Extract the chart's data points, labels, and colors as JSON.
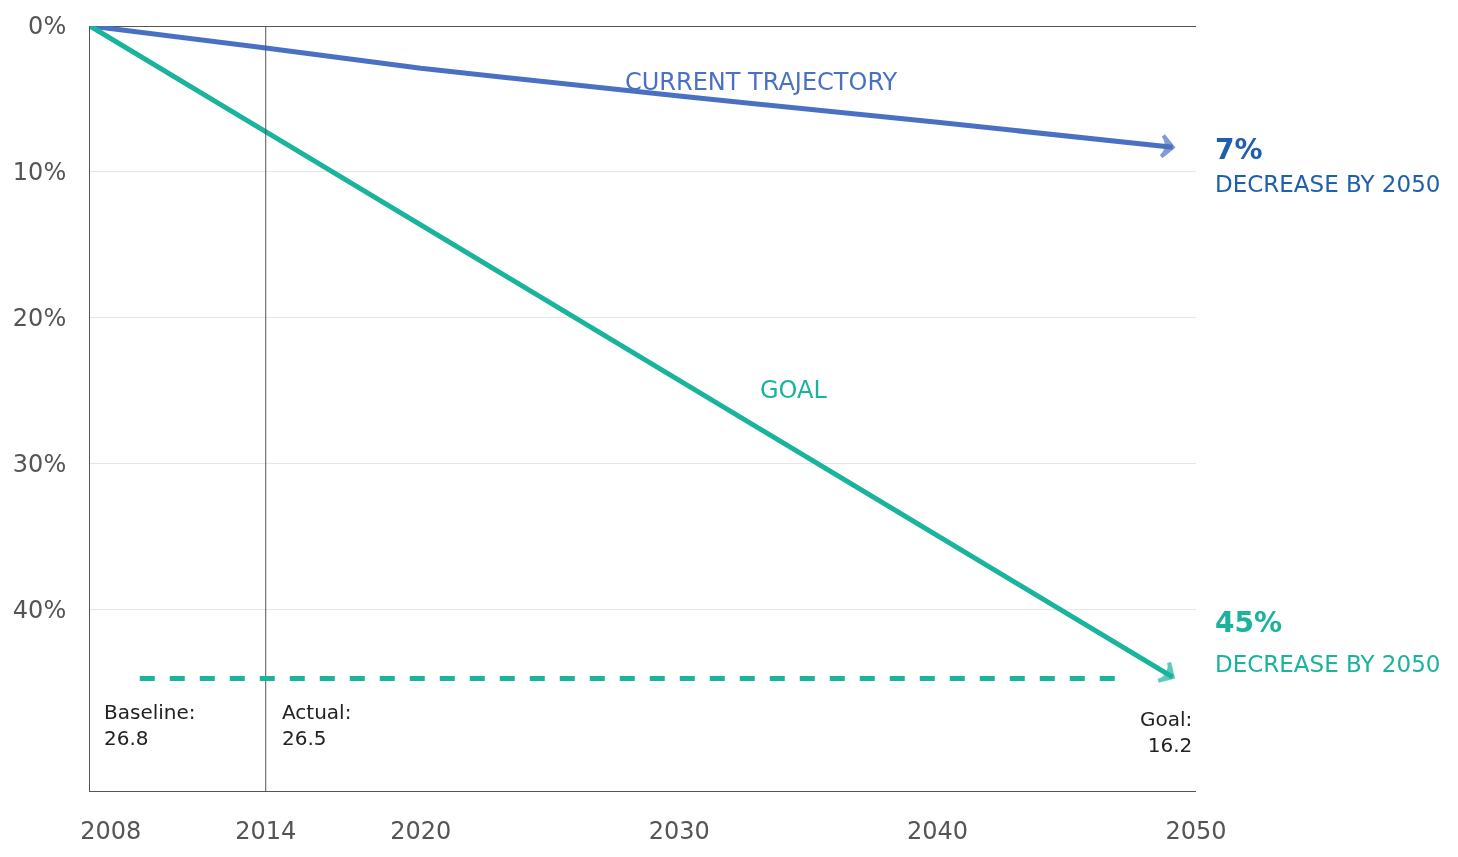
{
  "chart_data": {
    "type": "line",
    "x": [
      2007.2,
      2014,
      2020,
      2030,
      2040,
      2049.1
    ],
    "series": [
      {
        "name": "CURRENT TRAJECTORY",
        "color": "#4a70c4",
        "values": [
          0,
          1.5,
          2.9,
          4.8,
          6.6,
          8.3
        ]
      },
      {
        "name": "GOAL",
        "color": "#1ab39c",
        "x": [
          2007.2,
          2049.1
        ],
        "values": [
          0,
          44.6
        ]
      }
    ],
    "xlim": [
      2007.2,
      2050
    ],
    "xticks": [
      2008,
      2014,
      2020,
      2030,
      2040,
      2050
    ],
    "ylim": [
      52.4,
      0
    ],
    "yticks": [
      {
        "value": 0,
        "label": "0%"
      },
      {
        "value": 10,
        "label": "10%"
      },
      {
        "value": 20,
        "label": "20%"
      },
      {
        "value": 30,
        "label": "30%"
      },
      {
        "value": 40,
        "label": "40%"
      }
    ],
    "grid": "y",
    "legend": false,
    "marker": "none",
    "line_style": "solid",
    "ref_lines": [
      {
        "axis": "x",
        "value": 2014,
        "color": "#555555",
        "line_style": "solid"
      },
      {
        "axis": "y",
        "value": 44.7,
        "color": "#1ab39c",
        "line_style": "dashed"
      }
    ],
    "annotations": [
      "7%",
      "DECREASE BY 2050",
      "45%",
      "DECREASE BY 2050",
      "Baseline:\n26.8",
      "Actual:\n26.5",
      "Goal:\n16.2"
    ]
  }
}
